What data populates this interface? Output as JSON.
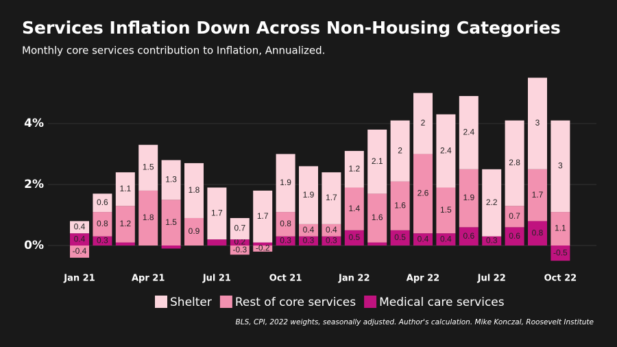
{
  "chart_data": {
    "type": "bar",
    "stacked": true,
    "title": "Services Inflation Down Across Non-Housing Categories",
    "subtitle": "Monthly core services contribution to Inflation, Annualized.",
    "source": "BLS, CPI, 2022 weights, seasonally adjusted. Author's calculation. Mike Konczal, Roosevelt Institute",
    "categories": [
      "Jan 21",
      null,
      null,
      "Apr 21",
      null,
      null,
      "Jul 21",
      null,
      null,
      "Oct 21",
      null,
      null,
      "Jan 22",
      null,
      null,
      "Apr 22",
      null,
      null,
      "Jul 22",
      null,
      null,
      "Oct 22"
    ],
    "series": [
      {
        "name": "Medical care services",
        "color": "#c0137f",
        "values": [
          0.4,
          0.3,
          0.1,
          0,
          -0.1,
          0,
          0.2,
          0.2,
          0.1,
          0.3,
          0.3,
          0.3,
          0.5,
          0.1,
          0.5,
          0.4,
          0.4,
          0.6,
          0.3,
          0.6,
          0.8,
          -0.5
        ],
        "value_labels": [
          "0.4",
          "0.3",
          null,
          null,
          null,
          null,
          null,
          "0.2",
          null,
          "0.3",
          "0.3",
          "0.3",
          "0.5",
          null,
          "0.5",
          "0.4",
          "0.4",
          "0.6",
          "0.3",
          "0.6",
          "0.8",
          "-0.5"
        ]
      },
      {
        "name": "Rest of core services",
        "color": "#f291b0",
        "values": [
          -0.4,
          0.8,
          1.2,
          1.8,
          1.5,
          0.9,
          0,
          -0.3,
          -0.2,
          0.8,
          0.4,
          0.4,
          1.4,
          1.6,
          1.6,
          2.6,
          1.5,
          1.9,
          0,
          0.7,
          1.7,
          1.1
        ],
        "value_labels": [
          "-0.4",
          "0.8",
          "1.2",
          "1.8",
          "1.5",
          "0.9",
          null,
          "-0.3",
          "-0.2",
          "0.8",
          "0.4",
          "0.4",
          "1.4",
          "1.6",
          "1.6",
          "2.6",
          "1.5",
          "1.9",
          null,
          "0.7",
          "1.7",
          "1.1"
        ]
      },
      {
        "name": "Shelter",
        "color": "#fcd5dd",
        "values": [
          0.4,
          0.6,
          1.1,
          1.5,
          1.3,
          1.8,
          1.7,
          0.7,
          1.7,
          1.9,
          1.9,
          1.7,
          1.2,
          2.1,
          2,
          2,
          2.4,
          2.4,
          2.2,
          2.8,
          3,
          3
        ],
        "value_labels": [
          "0.4",
          "0.6",
          "1.1",
          "1.5",
          "1.3",
          "1.8",
          "1.7",
          "0.7",
          "1.7",
          "1.9",
          "1.9",
          "1.7",
          "1.2",
          "2.1",
          "2",
          "2",
          "2.4",
          "2.4",
          "2.2",
          "2.8",
          "3",
          "3"
        ]
      }
    ],
    "legend_order": [
      2,
      1,
      0
    ],
    "ylim": [
      -0.8,
      5.8
    ],
    "yticks": [
      {
        "value": 0,
        "label": "0%"
      },
      {
        "value": 2,
        "label": "2%"
      },
      {
        "value": 4,
        "label": "4%"
      }
    ],
    "grid": true
  }
}
